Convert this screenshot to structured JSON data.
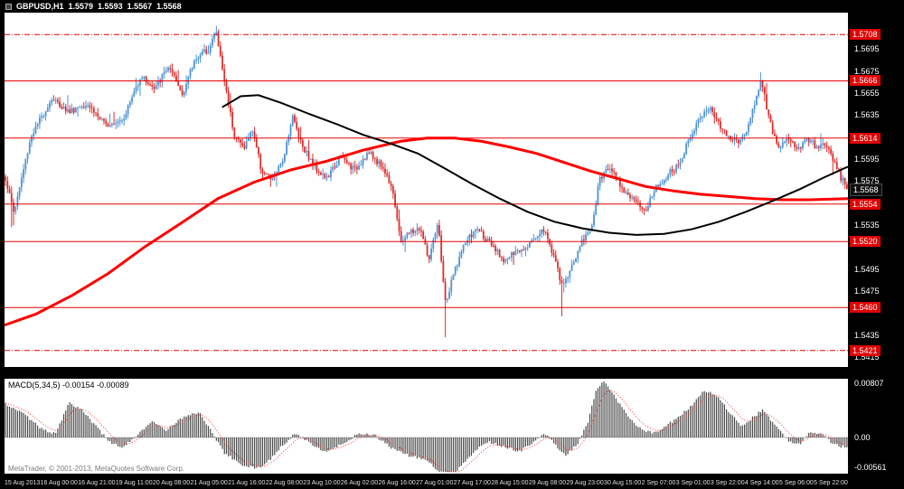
{
  "colors": {
    "background": "#000000",
    "plot_bg": "#ffffff",
    "bull": "#4e93d6",
    "bear": "#dd2e2e",
    "level_line": "#e60000",
    "ma_black": "#000000",
    "ma_red": "#ff0000",
    "histogram": "#4a4a4a",
    "signal": "#ff3030",
    "zero_line": "#c8c8c8",
    "label_box_red": "#e00000",
    "label_box_black": "#101010"
  },
  "header": {
    "symbol_period": "GBPUSD,H1",
    "open": "1.5579",
    "high": "1.5593",
    "low": "1.5567",
    "close": "1.5568"
  },
  "macd_panel": {
    "label": "MACD(5,34,5) -0.00154 -0.00089",
    "axis_max": "0.00807",
    "axis_zero": "0.00",
    "axis_min": "-0.00561"
  },
  "footer": {
    "credit": "MetaTrader, © 2001-2013, MetaQuotes Software Corp."
  },
  "time_axis": {
    "labels": [
      "15 Aug 2013",
      "16 Aug 00:00",
      "16 Aug 21:00",
      "19 Aug 11:00",
      "20 Aug 08:00",
      "21 Aug 05:00",
      "21 Aug 16:00",
      "22 Aug 08:00",
      "23 Aug 10:00",
      "26 Aug 02:00",
      "26 Aug 16:00",
      "27 Aug 01:00",
      "27 Aug 17:00",
      "28 Aug 15:00",
      "29 Aug 08:00",
      "29 Aug 23:00",
      "30 Aug 15:00",
      "2 Sep 07:00",
      "3 Sep 01:00",
      "3 Sep 22:00",
      "4 Sep 14:00",
      "5 Sep 06:00",
      "5 Sep 22:00"
    ]
  },
  "chart_data": {
    "type": "candlestick",
    "symbol": "GBPUSD",
    "timeframe": "H1",
    "title": "GBPUSD,H1 1.5579 1.5593 1.5567 1.5568",
    "bars": 420,
    "price_axis": {
      "top": 1.5728,
      "bottom": 1.5406,
      "first_tick": 1.5695,
      "last_tick": 1.5415,
      "tick_step": 0.002
    },
    "current_price": 1.5568,
    "levels": [
      {
        "price": 1.5708,
        "style": "dashdot"
      },
      {
        "price": 1.5666,
        "style": "solid"
      },
      {
        "price": 1.5614,
        "style": "solid"
      },
      {
        "price": 1.5554,
        "style": "solid"
      },
      {
        "price": 1.552,
        "style": "solid"
      },
      {
        "price": 1.546,
        "style": "solid"
      },
      {
        "price": 1.5421,
        "style": "dashdot"
      }
    ],
    "close_path": [
      [
        0.0,
        1.5577
      ],
      [
        0.01,
        1.5546
      ],
      [
        0.03,
        1.5615
      ],
      [
        0.055,
        1.565
      ],
      [
        0.075,
        1.5638
      ],
      [
        0.097,
        1.5646
      ],
      [
        0.118,
        1.5626
      ],
      [
        0.14,
        1.5632
      ],
      [
        0.161,
        1.5671
      ],
      [
        0.177,
        1.5658
      ],
      [
        0.193,
        1.5679
      ],
      [
        0.21,
        1.5654
      ],
      [
        0.226,
        1.5687
      ],
      [
        0.242,
        1.5695
      ],
      [
        0.25,
        1.5712
      ],
      [
        0.261,
        1.5662
      ],
      [
        0.272,
        1.5617
      ],
      [
        0.283,
        1.5605
      ],
      [
        0.294,
        1.5622
      ],
      [
        0.304,
        1.5585
      ],
      [
        0.315,
        1.5577
      ],
      [
        0.328,
        1.5589
      ],
      [
        0.341,
        1.5634
      ],
      [
        0.352,
        1.5609
      ],
      [
        0.366,
        1.5589
      ],
      [
        0.382,
        1.5577
      ],
      [
        0.398,
        1.5597
      ],
      [
        0.415,
        1.5585
      ],
      [
        0.431,
        1.5601
      ],
      [
        0.447,
        1.5589
      ],
      [
        0.46,
        1.5569
      ],
      [
        0.469,
        1.552
      ],
      [
        0.48,
        1.5528
      ],
      [
        0.493,
        1.5532
      ],
      [
        0.503,
        1.5503
      ],
      [
        0.514,
        1.5536
      ],
      [
        0.523,
        1.5462
      ],
      [
        0.534,
        1.5495
      ],
      [
        0.547,
        1.552
      ],
      [
        0.561,
        1.5532
      ],
      [
        0.577,
        1.5516
      ],
      [
        0.593,
        1.5503
      ],
      [
        0.609,
        1.5511
      ],
      [
        0.625,
        1.552
      ],
      [
        0.639,
        1.5532
      ],
      [
        0.652,
        1.5507
      ],
      [
        0.661,
        1.5479
      ],
      [
        0.672,
        1.5495
      ],
      [
        0.685,
        1.552
      ],
      [
        0.698,
        1.5536
      ],
      [
        0.706,
        1.5577
      ],
      [
        0.719,
        1.5589
      ],
      [
        0.733,
        1.5569
      ],
      [
        0.747,
        1.5556
      ],
      [
        0.76,
        1.5548
      ],
      [
        0.773,
        1.5569
      ],
      [
        0.787,
        1.5581
      ],
      [
        0.801,
        1.5589
      ],
      [
        0.814,
        1.5617
      ],
      [
        0.827,
        1.5634
      ],
      [
        0.838,
        1.5642
      ],
      [
        0.848,
        1.5626
      ],
      [
        0.859,
        1.5617
      ],
      [
        0.87,
        1.5609
      ],
      [
        0.881,
        1.5622
      ],
      [
        0.892,
        1.565
      ],
      [
        0.898,
        1.5667
      ],
      [
        0.907,
        1.5634
      ],
      [
        0.917,
        1.5605
      ],
      [
        0.928,
        1.5613
      ],
      [
        0.941,
        1.5605
      ],
      [
        0.954,
        1.5613
      ],
      [
        0.965,
        1.5605
      ],
      [
        0.975,
        1.5609
      ],
      [
        0.988,
        1.5585
      ],
      [
        1.0,
        1.5568
      ]
    ],
    "long_wicks": [
      {
        "f": 0.008,
        "low": 1.5533
      },
      {
        "f": 0.25,
        "high": 1.5716
      },
      {
        "f": 0.523,
        "low": 1.5433
      },
      {
        "f": 0.661,
        "low": 1.5452
      },
      {
        "f": 0.898,
        "high": 1.5674
      }
    ],
    "ma_black": [
      [
        0.258,
        1.5642
      ],
      [
        0.28,
        1.5652
      ],
      [
        0.301,
        1.5653
      ],
      [
        0.328,
        1.5646
      ],
      [
        0.361,
        1.5636
      ],
      [
        0.393,
        1.5627
      ],
      [
        0.425,
        1.5617
      ],
      [
        0.458,
        1.5609
      ],
      [
        0.49,
        1.56
      ],
      [
        0.523,
        1.5586
      ],
      [
        0.555,
        1.5572
      ],
      [
        0.587,
        1.5559
      ],
      [
        0.62,
        1.5547
      ],
      [
        0.652,
        1.5538
      ],
      [
        0.685,
        1.5532
      ],
      [
        0.717,
        1.5528
      ],
      [
        0.749,
        1.5526
      ],
      [
        0.782,
        1.5527
      ],
      [
        0.814,
        1.5531
      ],
      [
        0.847,
        1.5538
      ],
      [
        0.879,
        1.5547
      ],
      [
        0.911,
        1.5557
      ],
      [
        0.944,
        1.5568
      ],
      [
        0.971,
        1.5578
      ],
      [
        1.0,
        1.5588
      ]
    ],
    "ma_red": [
      [
        0.0,
        1.5444
      ],
      [
        0.037,
        1.5454
      ],
      [
        0.08,
        1.5471
      ],
      [
        0.123,
        1.5491
      ],
      [
        0.166,
        1.5515
      ],
      [
        0.21,
        1.5537
      ],
      [
        0.253,
        1.5559
      ],
      [
        0.296,
        1.5574
      ],
      [
        0.339,
        1.5585
      ],
      [
        0.382,
        1.5593
      ],
      [
        0.425,
        1.5603
      ],
      [
        0.469,
        1.5611
      ],
      [
        0.501,
        1.5614
      ],
      [
        0.534,
        1.5614
      ],
      [
        0.566,
        1.5611
      ],
      [
        0.598,
        1.5606
      ],
      [
        0.631,
        1.56
      ],
      [
        0.663,
        1.5592
      ],
      [
        0.695,
        1.5584
      ],
      [
        0.728,
        1.5577
      ],
      [
        0.76,
        1.557
      ],
      [
        0.793,
        1.5566
      ],
      [
        0.825,
        1.5563
      ],
      [
        0.857,
        1.5561
      ],
      [
        0.89,
        1.5559
      ],
      [
        0.922,
        1.5558
      ],
      [
        0.954,
        1.5558
      ],
      [
        1.0,
        1.5559
      ]
    ],
    "macd": {
      "fast": 5,
      "slow": 34,
      "signal_period": 5,
      "current": -0.00154,
      "signal_current": -0.00089,
      "axis_max": 0.00807,
      "axis_min": -0.00561,
      "path": [
        [
          0.0,
          0.0048
        ],
        [
          0.02,
          0.0035
        ],
        [
          0.045,
          0.001
        ],
        [
          0.06,
          0.0006
        ],
        [
          0.075,
          0.005
        ],
        [
          0.09,
          0.004
        ],
        [
          0.11,
          0.0012
        ],
        [
          0.125,
          -0.0008
        ],
        [
          0.14,
          -0.0014
        ],
        [
          0.16,
          0.0008
        ],
        [
          0.175,
          0.0022
        ],
        [
          0.19,
          0.001
        ],
        [
          0.21,
          0.0028
        ],
        [
          0.23,
          0.0036
        ],
        [
          0.245,
          0.0008
        ],
        [
          0.26,
          -0.0022
        ],
        [
          0.28,
          -0.0038
        ],
        [
          0.3,
          -0.0044
        ],
        [
          0.315,
          -0.003
        ],
        [
          0.33,
          -0.001
        ],
        [
          0.345,
          0.0006
        ],
        [
          0.36,
          -0.0006
        ],
        [
          0.38,
          -0.002
        ],
        [
          0.4,
          -0.001
        ],
        [
          0.42,
          0.0006
        ],
        [
          0.44,
          0.0002
        ],
        [
          0.46,
          -0.0016
        ],
        [
          0.48,
          -0.0026
        ],
        [
          0.5,
          -0.0032
        ],
        [
          0.515,
          -0.0048
        ],
        [
          0.53,
          -0.0056
        ],
        [
          0.545,
          -0.0036
        ],
        [
          0.56,
          -0.0016
        ],
        [
          0.575,
          -0.0006
        ],
        [
          0.59,
          -0.0012
        ],
        [
          0.61,
          -0.002
        ],
        [
          0.625,
          -0.001
        ],
        [
          0.64,
          0.0006
        ],
        [
          0.655,
          -0.0012
        ],
        [
          0.665,
          -0.0026
        ],
        [
          0.68,
          -0.0008
        ],
        [
          0.692,
          0.0022
        ],
        [
          0.702,
          0.0068
        ],
        [
          0.712,
          0.008
        ],
        [
          0.725,
          0.0056
        ],
        [
          0.74,
          0.003
        ],
        [
          0.755,
          0.0012
        ],
        [
          0.77,
          0.0006
        ],
        [
          0.785,
          0.0016
        ],
        [
          0.8,
          0.003
        ],
        [
          0.815,
          0.0044
        ],
        [
          0.83,
          0.0066
        ],
        [
          0.845,
          0.006
        ],
        [
          0.86,
          0.0036
        ],
        [
          0.875,
          0.0016
        ],
        [
          0.89,
          0.003
        ],
        [
          0.9,
          0.004
        ],
        [
          0.915,
          0.0016
        ],
        [
          0.93,
          -0.0004
        ],
        [
          0.945,
          -0.001
        ],
        [
          0.955,
          0.0006
        ],
        [
          0.97,
          0.0004
        ],
        [
          0.985,
          -0.001
        ],
        [
          1.0,
          -0.0015
        ]
      ]
    }
  }
}
